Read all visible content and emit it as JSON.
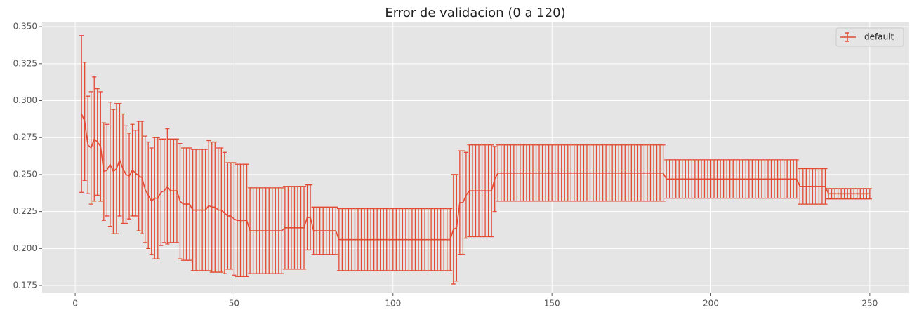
{
  "chart_data": {
    "type": "errorbar",
    "title": "Error de validacion (0 a 120)",
    "x": [
      2,
      3,
      4,
      5,
      6,
      7,
      8,
      9,
      10,
      11,
      12,
      13,
      14,
      15,
      16,
      17,
      18,
      19,
      20,
      21,
      22,
      23,
      24,
      25,
      26,
      27,
      28,
      29,
      30,
      31,
      32,
      33,
      34,
      35,
      36,
      37,
      38,
      39,
      40,
      41,
      42,
      43,
      44,
      45,
      46,
      47,
      48,
      49,
      50,
      51,
      52,
      53,
      54,
      55,
      56,
      57,
      58,
      59,
      60,
      61,
      62,
      63,
      64,
      65,
      66,
      67,
      68,
      69,
      70,
      71,
      72,
      73,
      74,
      75,
      76,
      77,
      78,
      79,
      80,
      81,
      82,
      83,
      84,
      85,
      86,
      87,
      88,
      89,
      90,
      91,
      92,
      93,
      94,
      95,
      96,
      97,
      98,
      99,
      100,
      101,
      102,
      103,
      104,
      105,
      106,
      107,
      108,
      109,
      110,
      111,
      112,
      113,
      114,
      115,
      116,
      117,
      118,
      119,
      120,
      121,
      122,
      123,
      124,
      125,
      126,
      127,
      128,
      129,
      130,
      131,
      132,
      133,
      134,
      135,
      136,
      137,
      138,
      139,
      140,
      141,
      142,
      143,
      144,
      145,
      146,
      147,
      148,
      149,
      150,
      151,
      152,
      153,
      154,
      155,
      156,
      157,
      158,
      159,
      160,
      161,
      162,
      163,
      164,
      165,
      166,
      167,
      168,
      169,
      170,
      171,
      172,
      173,
      174,
      175,
      176,
      177,
      178,
      179,
      180,
      181,
      182,
      183,
      184,
      185,
      186,
      187,
      188,
      189,
      190,
      191,
      192,
      193,
      194,
      195,
      196,
      197,
      198,
      199,
      200,
      201,
      202,
      203,
      204,
      205,
      206,
      207,
      208,
      209,
      210,
      211,
      212,
      213,
      214,
      215,
      216,
      217,
      218,
      219,
      220,
      221,
      222,
      223,
      224,
      225,
      226,
      227,
      228,
      229,
      230,
      231,
      232,
      233,
      234,
      235,
      236,
      237,
      238,
      239,
      240,
      241,
      242,
      243,
      244,
      245,
      246,
      247,
      248,
      249,
      250
    ],
    "series": [
      {
        "name": "default",
        "color": "#E24A33",
        "values": [
          0.291,
          0.286,
          0.27,
          0.268,
          0.274,
          0.272,
          0.269,
          0.252,
          0.253,
          0.257,
          0.252,
          0.254,
          0.26,
          0.254,
          0.25,
          0.249,
          0.253,
          0.251,
          0.249,
          0.248,
          0.24,
          0.236,
          0.232,
          0.234,
          0.234,
          0.238,
          0.239,
          0.242,
          0.239,
          0.239,
          0.239,
          0.232,
          0.23,
          0.23,
          0.23,
          0.226,
          0.226,
          0.226,
          0.226,
          0.226,
          0.229,
          0.228,
          0.228,
          0.226,
          0.226,
          0.224,
          0.222,
          0.222,
          0.22,
          0.219,
          0.219,
          0.219,
          0.219,
          0.212,
          0.212,
          0.212,
          0.212,
          0.212,
          0.212,
          0.212,
          0.212,
          0.212,
          0.212,
          0.212,
          0.214,
          0.214,
          0.214,
          0.214,
          0.214,
          0.214,
          0.214,
          0.221,
          0.221,
          0.212,
          0.212,
          0.212,
          0.212,
          0.212,
          0.212,
          0.212,
          0.212,
          0.206,
          0.206,
          0.206,
          0.206,
          0.206,
          0.206,
          0.206,
          0.206,
          0.206,
          0.206,
          0.206,
          0.206,
          0.206,
          0.206,
          0.206,
          0.206,
          0.206,
          0.206,
          0.206,
          0.206,
          0.206,
          0.206,
          0.206,
          0.206,
          0.206,
          0.206,
          0.206,
          0.206,
          0.206,
          0.206,
          0.206,
          0.206,
          0.206,
          0.206,
          0.206,
          0.206,
          0.213,
          0.214,
          0.231,
          0.231,
          0.236,
          0.239,
          0.239,
          0.239,
          0.239,
          0.239,
          0.239,
          0.239,
          0.239,
          0.247,
          0.251,
          0.251,
          0.251,
          0.251,
          0.251,
          0.251,
          0.251,
          0.251,
          0.251,
          0.251,
          0.251,
          0.251,
          0.251,
          0.251,
          0.251,
          0.251,
          0.251,
          0.251,
          0.251,
          0.251,
          0.251,
          0.251,
          0.251,
          0.251,
          0.251,
          0.251,
          0.251,
          0.251,
          0.251,
          0.251,
          0.251,
          0.251,
          0.251,
          0.251,
          0.251,
          0.251,
          0.251,
          0.251,
          0.251,
          0.251,
          0.251,
          0.251,
          0.251,
          0.251,
          0.251,
          0.251,
          0.251,
          0.251,
          0.251,
          0.251,
          0.251,
          0.251,
          0.251,
          0.247,
          0.247,
          0.247,
          0.247,
          0.247,
          0.247,
          0.247,
          0.247,
          0.247,
          0.247,
          0.247,
          0.247,
          0.247,
          0.247,
          0.247,
          0.247,
          0.247,
          0.247,
          0.247,
          0.247,
          0.247,
          0.247,
          0.247,
          0.247,
          0.247,
          0.247,
          0.247,
          0.247,
          0.247,
          0.247,
          0.247,
          0.247,
          0.247,
          0.247,
          0.247,
          0.247,
          0.247,
          0.247,
          0.247,
          0.247,
          0.247,
          0.247,
          0.242,
          0.242,
          0.242,
          0.242,
          0.242,
          0.242,
          0.242,
          0.242,
          0.242,
          0.237,
          0.237,
          0.237,
          0.237,
          0.237,
          0.237,
          0.237,
          0.237,
          0.237,
          0.237,
          0.237,
          0.237,
          0.237,
          0.237
        ],
        "errors": [
          0.053,
          0.04,
          0.033,
          0.038,
          0.042,
          0.036,
          0.037,
          0.033,
          0.031,
          0.042,
          0.042,
          0.044,
          0.038,
          0.037,
          0.033,
          0.029,
          0.031,
          0.029,
          0.037,
          0.038,
          0.036,
          0.036,
          0.036,
          0.041,
          0.041,
          0.036,
          0.035,
          0.039,
          0.035,
          0.035,
          0.035,
          0.039,
          0.038,
          0.038,
          0.038,
          0.041,
          0.041,
          0.041,
          0.041,
          0.041,
          0.044,
          0.044,
          0.044,
          0.042,
          0.042,
          0.041,
          0.036,
          0.036,
          0.038,
          0.038,
          0.038,
          0.038,
          0.038,
          0.029,
          0.029,
          0.029,
          0.029,
          0.029,
          0.029,
          0.029,
          0.029,
          0.029,
          0.029,
          0.029,
          0.028,
          0.028,
          0.028,
          0.028,
          0.028,
          0.028,
          0.028,
          0.022,
          0.022,
          0.016,
          0.016,
          0.016,
          0.016,
          0.016,
          0.016,
          0.016,
          0.016,
          0.021,
          0.021,
          0.021,
          0.021,
          0.021,
          0.021,
          0.021,
          0.021,
          0.021,
          0.021,
          0.021,
          0.021,
          0.021,
          0.021,
          0.021,
          0.021,
          0.021,
          0.021,
          0.021,
          0.021,
          0.021,
          0.021,
          0.021,
          0.021,
          0.021,
          0.021,
          0.021,
          0.021,
          0.021,
          0.021,
          0.021,
          0.021,
          0.021,
          0.021,
          0.021,
          0.021,
          0.037,
          0.036,
          0.035,
          0.035,
          0.029,
          0.031,
          0.031,
          0.031,
          0.031,
          0.031,
          0.031,
          0.031,
          0.031,
          0.022,
          0.019,
          0.019,
          0.019,
          0.019,
          0.019,
          0.019,
          0.019,
          0.019,
          0.019,
          0.019,
          0.019,
          0.019,
          0.019,
          0.019,
          0.019,
          0.019,
          0.019,
          0.019,
          0.019,
          0.019,
          0.019,
          0.019,
          0.019,
          0.019,
          0.019,
          0.019,
          0.019,
          0.019,
          0.019,
          0.019,
          0.019,
          0.019,
          0.019,
          0.019,
          0.019,
          0.019,
          0.019,
          0.019,
          0.019,
          0.019,
          0.019,
          0.019,
          0.019,
          0.019,
          0.019,
          0.019,
          0.019,
          0.019,
          0.019,
          0.019,
          0.019,
          0.019,
          0.019,
          0.013,
          0.013,
          0.013,
          0.013,
          0.013,
          0.013,
          0.013,
          0.013,
          0.013,
          0.013,
          0.013,
          0.013,
          0.013,
          0.013,
          0.013,
          0.013,
          0.013,
          0.013,
          0.013,
          0.013,
          0.013,
          0.013,
          0.013,
          0.013,
          0.013,
          0.013,
          0.013,
          0.013,
          0.013,
          0.013,
          0.013,
          0.013,
          0.013,
          0.013,
          0.013,
          0.013,
          0.013,
          0.013,
          0.013,
          0.013,
          0.013,
          0.013,
          0.012,
          0.012,
          0.012,
          0.012,
          0.012,
          0.012,
          0.012,
          0.012,
          0.012,
          0.0035,
          0.0035,
          0.0035,
          0.0035,
          0.0035,
          0.0035,
          0.0035,
          0.0035,
          0.0035,
          0.0035,
          0.0035,
          0.0035,
          0.0035,
          0.0035
        ]
      }
    ],
    "xlim": [
      -10.4,
      262.4
    ],
    "ylim": [
      0.1698,
      0.3529
    ],
    "xticks": [
      0,
      50,
      100,
      150,
      200,
      250
    ],
    "yticks": [
      0.175,
      {
        "value": 0.2,
        "label": "0.200"
      },
      0.225,
      {
        "value": 0.25,
        "label": "0.250"
      },
      0.275,
      {
        "value": 0.3,
        "label": "0.300"
      },
      0.325,
      {
        "value": 0.35,
        "label": "0.350"
      }
    ],
    "grid": true,
    "legend": "upper right"
  }
}
